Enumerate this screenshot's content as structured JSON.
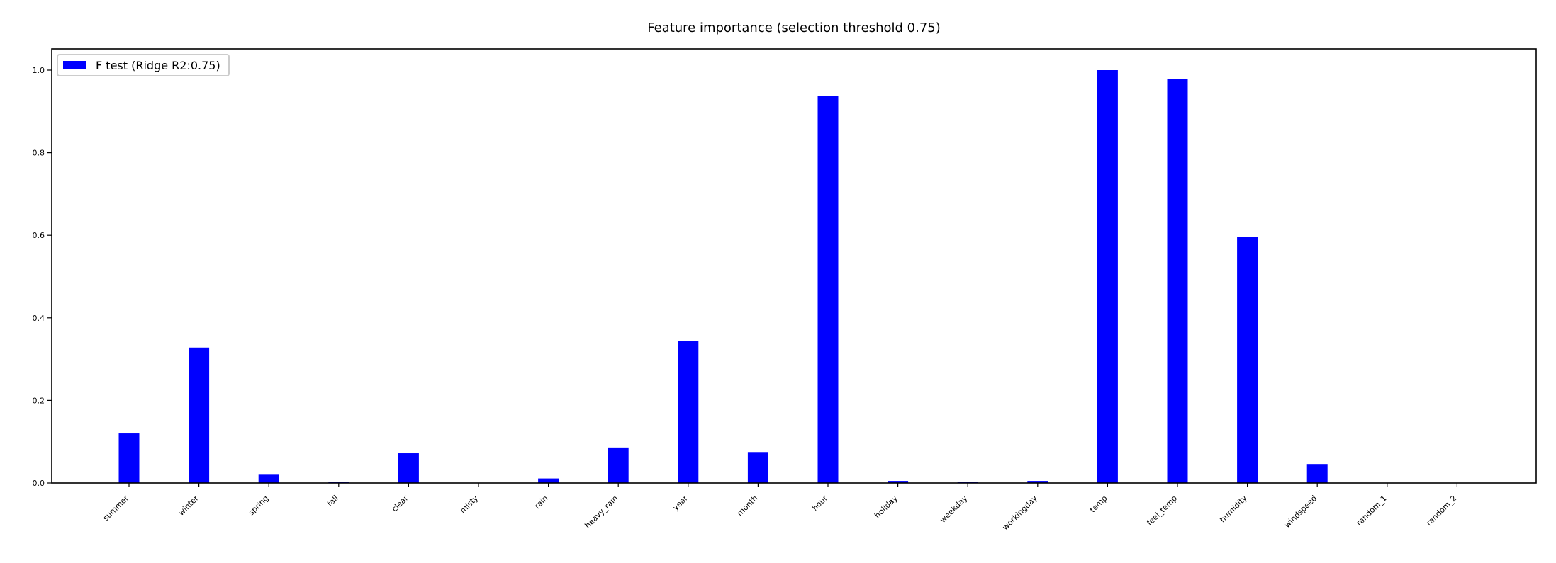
{
  "chart_data": {
    "type": "bar",
    "title": "Feature importance (selection threshold 0.75)",
    "xlabel": "",
    "ylabel": "",
    "categories": [
      "summer",
      "winter",
      "spring",
      "fall",
      "clear",
      "misty",
      "rain",
      "heavy_rain",
      "year",
      "month",
      "hour",
      "holiday",
      "weekday",
      "workingday",
      "temp",
      "feel_temp",
      "humidity",
      "windspeed",
      "random_1",
      "random_2"
    ],
    "series": [
      {
        "name": "F test (Ridge R2:0.75)",
        "color": "#0000ff",
        "values": [
          0.12,
          0.328,
          0.02,
          0.003,
          0.072,
          0.0,
          0.011,
          0.086,
          0.344,
          0.075,
          0.938,
          0.005,
          0.003,
          0.005,
          1.0,
          0.978,
          0.596,
          0.046,
          0.0,
          0.0
        ]
      }
    ],
    "ylim": [
      0,
      1.0
    ],
    "yticks": [
      "0.0",
      "0.2",
      "0.4",
      "0.6",
      "0.8",
      "1.0"
    ],
    "grid": false,
    "legend_position": "top-left"
  }
}
